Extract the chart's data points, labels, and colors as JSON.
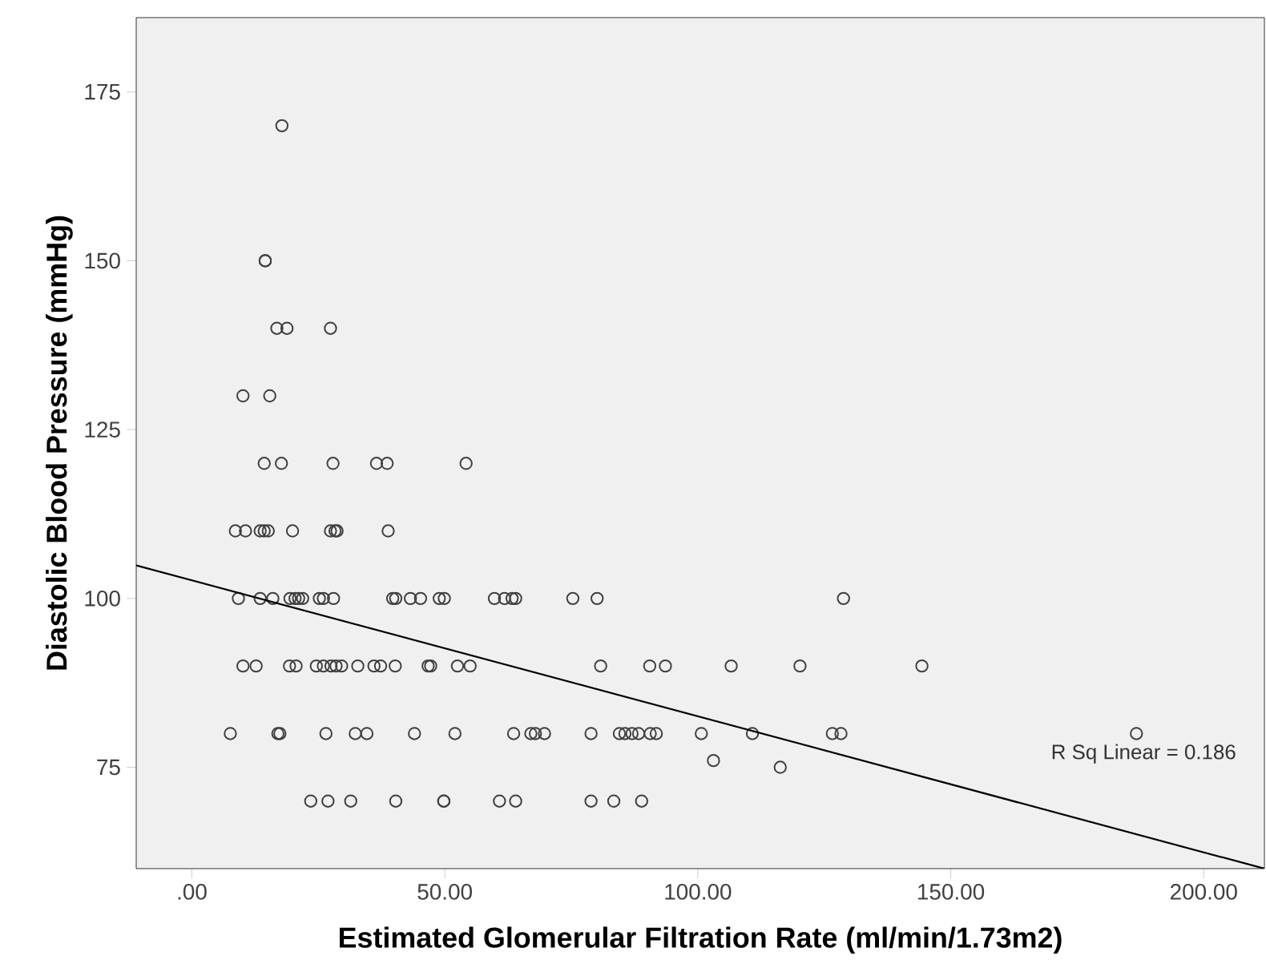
{
  "chart_data": {
    "type": "scatter",
    "xlabel": "Estimated Glomerular Filtration Rate (ml/min/1.73m2)",
    "ylabel": "Diastolic Blood Pressure (mmHg)",
    "xlim": [
      -11,
      212
    ],
    "ylim": [
      60,
      186
    ],
    "xticks": [
      {
        "value": 0,
        "label": ".00"
      },
      {
        "value": 50,
        "label": "50.00"
      },
      {
        "value": 100,
        "label": "100.00"
      },
      {
        "value": 150,
        "label": "150.00"
      },
      {
        "value": 200,
        "label": "200.00"
      }
    ],
    "yticks": [
      75,
      100,
      125,
      150,
      175
    ],
    "grid": false,
    "marker": "circle",
    "annotations": [
      "R Sq Linear = 0.186"
    ],
    "series": [
      {
        "color": "#404040",
        "x": [
          17.8,
          14.5,
          14.5,
          16.8,
          18.8,
          27.4,
          10.1,
          15.4,
          14.3,
          17.7,
          27.9,
          36.5,
          38.6,
          54.2,
          8.6,
          10.6,
          13.5,
          14.3,
          15.1,
          19.9,
          27.4,
          28.3,
          28.7,
          38.8,
          9.2,
          13.5,
          16.0,
          19.4,
          20.4,
          21.1,
          21.9,
          25.2,
          26.0,
          28.0,
          39.7,
          40.3,
          43.2,
          45.2,
          48.9,
          49.9,
          59.8,
          61.8,
          63.3,
          64.0,
          75.3,
          80.1,
          128.8,
          10.1,
          12.7,
          19.3,
          20.6,
          24.6,
          26.0,
          27.5,
          28.5,
          29.6,
          32.8,
          36.0,
          37.3,
          40.2,
          46.7,
          47.2,
          52.5,
          55.0,
          80.8,
          90.5,
          93.6,
          106.6,
          120.2,
          144.3,
          7.6,
          17.0,
          17.4,
          26.5,
          32.3,
          34.6,
          44.0,
          52.0,
          63.6,
          67.0,
          67.9,
          69.7,
          78.9,
          84.5,
          85.6,
          87.0,
          88.3,
          90.6,
          91.8,
          100.7,
          110.8,
          126.6,
          128.3,
          186.7,
          103.1,
          116.3,
          23.5,
          26.9,
          31.4,
          40.3,
          49.8,
          49.8,
          60.8,
          64.0,
          78.9,
          83.4,
          88.9
        ],
        "values": [
          170,
          150,
          150,
          140,
          140,
          140,
          130,
          130,
          120,
          120,
          120,
          120,
          120,
          120,
          110,
          110,
          110,
          110,
          110,
          110,
          110,
          110,
          110,
          110,
          100,
          100,
          100,
          100,
          100,
          100,
          100,
          100,
          100,
          100,
          100,
          100,
          100,
          100,
          100,
          100,
          100,
          100,
          100,
          100,
          100,
          100,
          100,
          90,
          90,
          90,
          90,
          90,
          90,
          90,
          90,
          90,
          90,
          90,
          90,
          90,
          90,
          90,
          90,
          90,
          90,
          90,
          90,
          90,
          90,
          90,
          80,
          80,
          80,
          80,
          80,
          80,
          80,
          80,
          80,
          80,
          80,
          80,
          80,
          80,
          80,
          80,
          80,
          80,
          80,
          80,
          80,
          80,
          80,
          80,
          76,
          75,
          70,
          70,
          70,
          70,
          70,
          70,
          70,
          70,
          70,
          70,
          70
        ]
      },
      {
        "type": "line",
        "color": "#000000",
        "marker": "none",
        "x": [
          -11,
          212
        ],
        "values": [
          104.9,
          60
        ]
      }
    ]
  }
}
